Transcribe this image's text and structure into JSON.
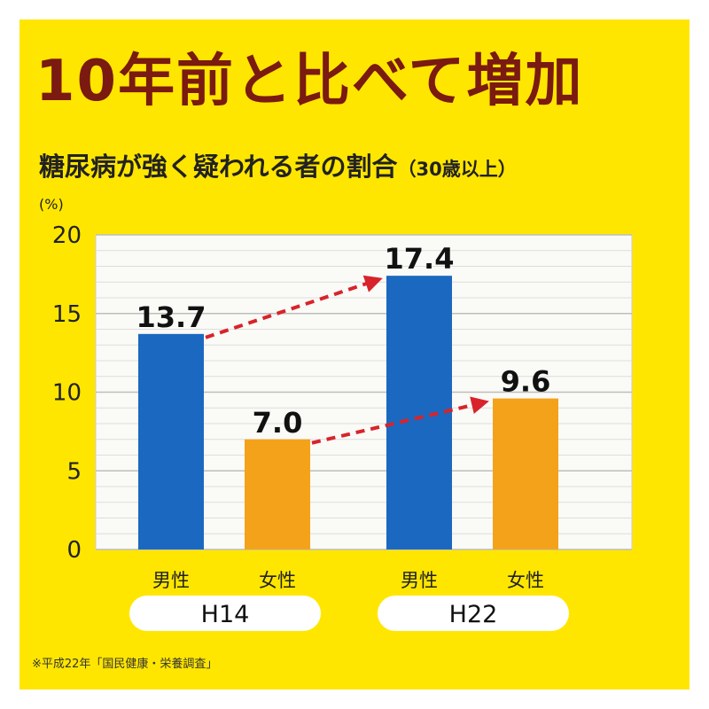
{
  "title": "10年前と比べて増加",
  "subtitle": "糖尿病が強く疑われる者の割合",
  "subtitle_paren": "（30歳以上）",
  "footnote": "※平成22年「国民健康・栄養調査」",
  "colors": {
    "background": "#FFE600",
    "title": "#7A1A10",
    "male": "#1B68C0",
    "female": "#F4A21A",
    "arrow": "#D8232A"
  },
  "chart_data": {
    "type": "bar",
    "ylabel": "(%)",
    "ylim": [
      0,
      20
    ],
    "yticks": [
      0,
      5,
      10,
      15,
      20
    ],
    "grid": true,
    "groups": [
      {
        "label": "H14",
        "bars": [
          {
            "category": "男性",
            "value": 13.7,
            "label": "13.7",
            "color": "male"
          },
          {
            "category": "女性",
            "value": 7.0,
            "label": "7.0",
            "color": "female"
          }
        ]
      },
      {
        "label": "H22",
        "bars": [
          {
            "category": "男性",
            "value": 17.4,
            "label": "17.4",
            "color": "male"
          },
          {
            "category": "女性",
            "value": 9.6,
            "label": "9.6",
            "color": "female"
          }
        ]
      }
    ],
    "arrows": [
      {
        "from": "H14 男性",
        "to": "H22 男性"
      },
      {
        "from": "H14 女性",
        "to": "H22 女性"
      }
    ]
  }
}
